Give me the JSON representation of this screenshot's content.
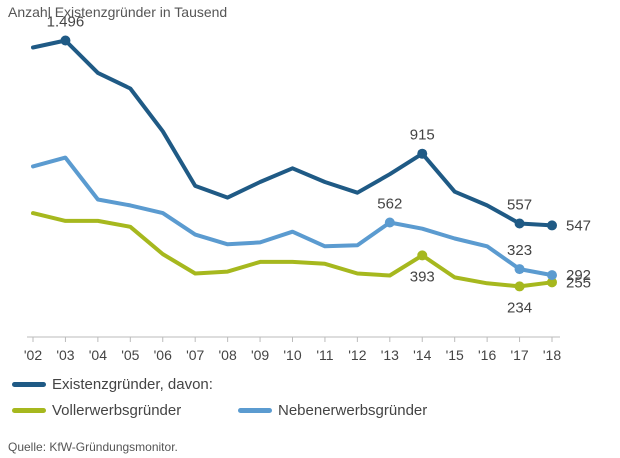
{
  "chart_data": {
    "type": "line",
    "title": "Anzahl Existenzgründer in Tausend",
    "categories": [
      "'02",
      "'03",
      "'04",
      "'05",
      "'06",
      "'07",
      "'08",
      "'09",
      "'10",
      "'11",
      "'12",
      "'13",
      "'14",
      "'15",
      "'16",
      "'17",
      "'18"
    ],
    "ylim": [
      0,
      1550
    ],
    "series": [
      {
        "name": "Existenzgründer, davon:",
        "color": "#1f5a85",
        "values": [
          1460,
          1496,
          1330,
          1250,
          1030,
          750,
          690,
          770,
          840,
          770,
          715,
          810,
          915,
          720,
          650,
          557,
          547
        ],
        "markers": [
          1,
          12,
          15,
          16
        ],
        "labels": [
          {
            "index": 1,
            "text": "1.496",
            "pos": "above"
          },
          {
            "index": 12,
            "text": "915",
            "pos": "above"
          },
          {
            "index": 15,
            "text": "557",
            "pos": "above"
          },
          {
            "index": 16,
            "text": "547",
            "pos": "right"
          }
        ]
      },
      {
        "name": "Vollerwerbsgründer",
        "color": "#a6b81e",
        "values": [
          610,
          570,
          570,
          540,
          400,
          300,
          310,
          360,
          360,
          350,
          300,
          290,
          393,
          280,
          250,
          234,
          255
        ],
        "markers": [
          12,
          15,
          16
        ],
        "labels": [
          {
            "index": 12,
            "text": "393",
            "pos": "below"
          },
          {
            "index": 15,
            "text": "234",
            "pos": "below"
          },
          {
            "index": 16,
            "text": "255",
            "pos": "right"
          }
        ]
      },
      {
        "name": "Nebenerwerbsgründer",
        "color": "#5b9bd0",
        "values": [
          850,
          895,
          680,
          650,
          610,
          500,
          450,
          460,
          515,
          440,
          445,
          562,
          530,
          480,
          440,
          323,
          292
        ],
        "markers": [
          11,
          15,
          16
        ],
        "labels": [
          {
            "index": 11,
            "text": "562",
            "pos": "above"
          },
          {
            "index": 15,
            "text": "323",
            "pos": "above"
          },
          {
            "index": 16,
            "text": "292",
            "pos": "right"
          }
        ]
      }
    ]
  },
  "source": "Quelle: KfW-Gründungsmonitor."
}
